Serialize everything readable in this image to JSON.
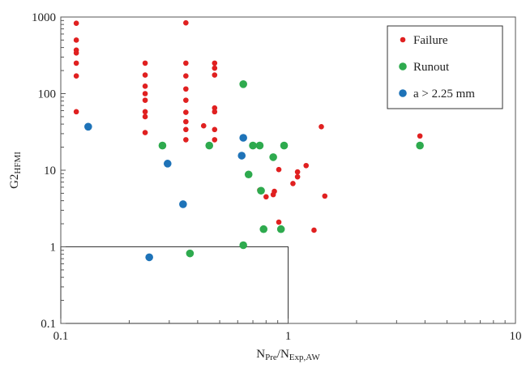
{
  "chart_data": {
    "type": "scatter",
    "xscale": "log",
    "yscale": "log",
    "xlim": [
      0.1,
      10
    ],
    "ylim": [
      0.1,
      1000
    ],
    "grid": false,
    "legend_position": "top-right",
    "xlabel": {
      "main": "N",
      "sub1": "Pre",
      "mid": "/N",
      "sub2": "Exp,AW"
    },
    "ylabel": {
      "main": "G2",
      "sub": "HFMI"
    },
    "xticks": [
      {
        "v": 0.1,
        "label": "0.1"
      },
      {
        "v": 1,
        "label": "1"
      },
      {
        "v": 10,
        "label": "10"
      }
    ],
    "yticks": [
      {
        "v": 0.1,
        "label": "0.1"
      },
      {
        "v": 1,
        "label": "1"
      },
      {
        "v": 10,
        "label": "10"
      },
      {
        "v": 100,
        "label": "100"
      },
      {
        "v": 1000,
        "label": "1000"
      }
    ],
    "reference_box": {
      "x": [
        0.1,
        1
      ],
      "y": [
        0.1,
        1
      ]
    },
    "series": [
      {
        "name": "Failure",
        "color": "#e02020",
        "marker": "small",
        "points": [
          [
            0.117,
            830
          ],
          [
            0.117,
            500
          ],
          [
            0.117,
            370
          ],
          [
            0.117,
            340
          ],
          [
            0.117,
            250
          ],
          [
            0.117,
            170
          ],
          [
            0.117,
            58
          ],
          [
            0.235,
            250
          ],
          [
            0.235,
            175
          ],
          [
            0.235,
            125
          ],
          [
            0.235,
            100
          ],
          [
            0.235,
            82
          ],
          [
            0.235,
            58
          ],
          [
            0.235,
            50
          ],
          [
            0.235,
            31
          ],
          [
            0.355,
            840
          ],
          [
            0.355,
            250
          ],
          [
            0.355,
            170
          ],
          [
            0.355,
            115
          ],
          [
            0.355,
            82
          ],
          [
            0.355,
            57
          ],
          [
            0.355,
            43
          ],
          [
            0.355,
            34
          ],
          [
            0.355,
            25
          ],
          [
            0.425,
            38
          ],
          [
            0.475,
            250
          ],
          [
            0.475,
            215
          ],
          [
            0.475,
            175
          ],
          [
            0.475,
            65
          ],
          [
            0.475,
            58
          ],
          [
            0.475,
            34
          ],
          [
            0.475,
            25
          ],
          [
            0.75,
            5.5
          ],
          [
            0.8,
            4.5
          ],
          [
            0.86,
            4.8
          ],
          [
            0.87,
            5.3
          ],
          [
            0.91,
            10.2
          ],
          [
            0.91,
            2.1
          ],
          [
            1.05,
            6.7
          ],
          [
            1.1,
            8.2
          ],
          [
            1.1,
            9.5
          ],
          [
            1.2,
            11.5
          ],
          [
            1.3,
            1.65
          ],
          [
            1.4,
            37
          ],
          [
            1.45,
            4.6
          ],
          [
            3.8,
            28
          ]
        ]
      },
      {
        "name": "Runout",
        "color": "#2eaa4e",
        "marker": "large",
        "points": [
          [
            0.635,
            133
          ],
          [
            0.28,
            21
          ],
          [
            0.45,
            21
          ],
          [
            0.7,
            21
          ],
          [
            0.75,
            21
          ],
          [
            0.96,
            21
          ],
          [
            0.67,
            8.8
          ],
          [
            0.86,
            14.8
          ],
          [
            0.76,
            5.4
          ],
          [
            0.78,
            1.7
          ],
          [
            0.93,
            1.7
          ],
          [
            0.635,
            1.05
          ],
          [
            0.37,
            0.82
          ],
          [
            3.8,
            21
          ]
        ]
      },
      {
        "name": "a > 2.25 mm",
        "color": "#1e73b8",
        "marker": "large",
        "points": [
          [
            0.132,
            37
          ],
          [
            0.295,
            12.2
          ],
          [
            0.345,
            3.6
          ],
          [
            0.245,
            0.73
          ],
          [
            0.635,
            26.5
          ],
          [
            0.625,
            15.5
          ]
        ]
      }
    ]
  }
}
